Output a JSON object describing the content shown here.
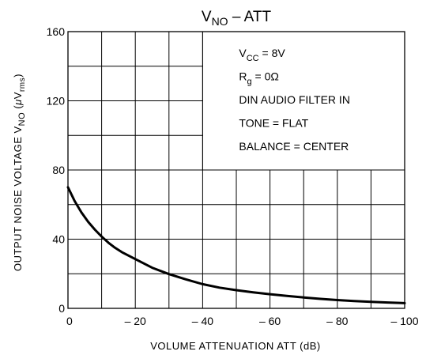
{
  "chart_data": {
    "type": "line",
    "title": {
      "main": "V",
      "sub": "NO",
      "rest": " – ATT"
    },
    "xlabel": "VOLUME ATTENUATION   ATT    (dB)",
    "ylabel": {
      "main": "OUTPUT NOISE VOLTAGE   V",
      "sub": "NO",
      "unit_open": "  (",
      "unit_mu": "μ",
      "unit_v": "V",
      "unit_sub": "rms",
      "unit_close": ")"
    },
    "xlim": [
      0,
      -100
    ],
    "ylim": [
      0,
      160
    ],
    "x_ticks": [
      {
        "value": 0,
        "label": "0"
      },
      {
        "value": -20,
        "label": "– 20"
      },
      {
        "value": -40,
        "label": "– 40"
      },
      {
        "value": -60,
        "label": "– 60"
      },
      {
        "value": -80,
        "label": "– 80"
      },
      {
        "value": -100,
        "label": "– 100"
      }
    ],
    "y_ticks": [
      {
        "value": 0,
        "label": "0"
      },
      {
        "value": 40,
        "label": "40"
      },
      {
        "value": 80,
        "label": "80"
      },
      {
        "value": 120,
        "label": "120"
      },
      {
        "value": 160,
        "label": "160"
      }
    ],
    "x_gridlines": [
      0,
      -10,
      -20,
      -30,
      -40,
      -50,
      -60,
      -70,
      -80,
      -90,
      -100
    ],
    "y_gridlines": [
      0,
      20,
      40,
      60,
      80,
      100,
      120,
      140,
      160
    ],
    "grid": true,
    "legend_box": {
      "x_range": [
        -40,
        -100
      ],
      "y_range": [
        80,
        160
      ]
    },
    "conditions": [
      {
        "main": "V",
        "sub": "CC",
        "rest": " = 8V"
      },
      {
        "main": "R",
        "sub": "g",
        "rest": " = 0Ω"
      },
      {
        "main": "DIN AUDIO FILTER IN",
        "sub": "",
        "rest": ""
      },
      {
        "main": "TONE = FLAT",
        "sub": "",
        "rest": ""
      },
      {
        "main": "BALANCE = CENTER",
        "sub": "",
        "rest": ""
      }
    ],
    "series": [
      {
        "x": [
          0,
          -2,
          -4,
          -6,
          -8,
          -10,
          -12,
          -14,
          -16,
          -18,
          -20,
          -25,
          -30,
          -35,
          -40,
          -45,
          -50,
          -55,
          -60,
          -65,
          -70,
          -75,
          -80,
          -85,
          -90,
          -95,
          -100
        ],
        "y": [
          70,
          62,
          55.5,
          50,
          45.5,
          41.5,
          38,
          35,
          32.5,
          30.5,
          28.5,
          23.5,
          19.8,
          16.8,
          14,
          12,
          10.5,
          9.3,
          8.2,
          7.2,
          6.3,
          5.5,
          4.8,
          4.2,
          3.8,
          3.4,
          3.0
        ]
      }
    ]
  }
}
